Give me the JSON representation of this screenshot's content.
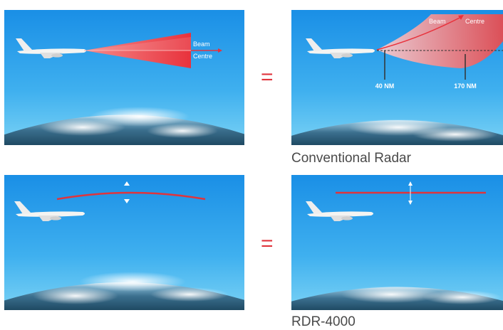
{
  "panels": {
    "top_left": {
      "beam_label_line1": "Beam",
      "beam_label_line2": "Centre"
    },
    "top_right": {
      "beam_label": "Beam",
      "centre_label": "Centre",
      "range_near": "40 NM",
      "range_far": "170 NM"
    },
    "bottom_left": {},
    "bottom_right": {}
  },
  "equals_symbol": "=",
  "captions": {
    "conventional": "Conventional Radar",
    "rdr": "RDR-4000"
  },
  "colors": {
    "sky_top": "#1a8fe6",
    "sky_bottom": "#5cc4f2",
    "beam_red": "#e8323c",
    "accent": "#e0343c"
  }
}
